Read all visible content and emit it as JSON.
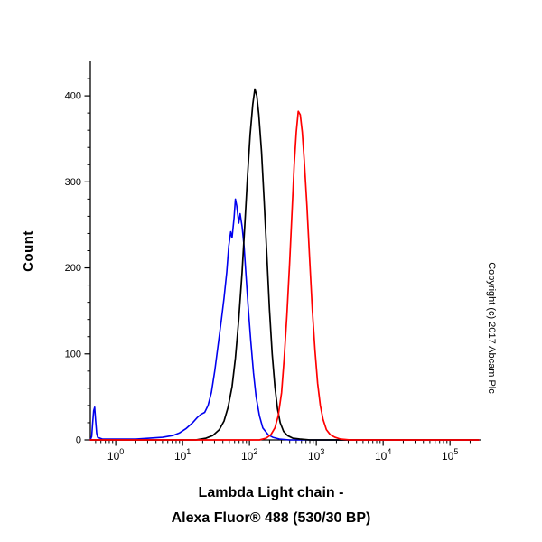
{
  "title": {
    "line1": "Lambda Light chain -",
    "line2": "Alexa Fluor® 488 (530/30 BP)"
  },
  "ylabel": "Count",
  "copyright": "Copyright (c) 2017 Abcam Plc",
  "colors": {
    "axis": "#000000",
    "blue_curve": "#0000ee",
    "black_curve": "#000000",
    "red_curve": "#ff0000",
    "background": "#ffffff"
  },
  "chart_data": {
    "type": "line",
    "subtype": "flow-cytometry-histogram",
    "x_scale": "log10",
    "xlabel": "",
    "ylabel": "Count",
    "xlim_log": [
      -0.38,
      5.43
    ],
    "ylim": [
      0,
      440
    ],
    "x_tick_exponents": [
      0,
      1,
      2,
      3,
      4,
      5
    ],
    "y_ticks": [
      0,
      100,
      200,
      300,
      400
    ],
    "y_minor_step": 20,
    "grid": false,
    "legend": "none",
    "series": [
      {
        "name": "blue-curve",
        "color": "#0000ee",
        "width": 1.6,
        "peak": {
          "x_log10": 1.79,
          "count": 280
        },
        "points": [
          [
            -0.38,
            0
          ],
          [
            -0.36,
            4
          ],
          [
            -0.345,
            20
          ],
          [
            -0.33,
            34
          ],
          [
            -0.315,
            38
          ],
          [
            -0.3,
            22
          ],
          [
            -0.285,
            8
          ],
          [
            -0.27,
            3
          ],
          [
            -0.2,
            1
          ],
          [
            0.0,
            1
          ],
          [
            0.3,
            1
          ],
          [
            0.5,
            2
          ],
          [
            0.7,
            3
          ],
          [
            0.85,
            5
          ],
          [
            0.95,
            8
          ],
          [
            1.05,
            13
          ],
          [
            1.15,
            20
          ],
          [
            1.22,
            26
          ],
          [
            1.28,
            30
          ],
          [
            1.33,
            32
          ],
          [
            1.38,
            40
          ],
          [
            1.43,
            55
          ],
          [
            1.48,
            80
          ],
          [
            1.53,
            110
          ],
          [
            1.58,
            140
          ],
          [
            1.62,
            165
          ],
          [
            1.66,
            195
          ],
          [
            1.69,
            225
          ],
          [
            1.72,
            242
          ],
          [
            1.74,
            235
          ],
          [
            1.77,
            258
          ],
          [
            1.79,
            280
          ],
          [
            1.81,
            272
          ],
          [
            1.84,
            252
          ],
          [
            1.86,
            263
          ],
          [
            1.89,
            248
          ],
          [
            1.92,
            225
          ],
          [
            1.95,
            190
          ],
          [
            1.98,
            155
          ],
          [
            2.02,
            115
          ],
          [
            2.06,
            78
          ],
          [
            2.1,
            50
          ],
          [
            2.15,
            28
          ],
          [
            2.2,
            14
          ],
          [
            2.28,
            6
          ],
          [
            2.35,
            3
          ],
          [
            2.45,
            1
          ],
          [
            2.6,
            0
          ],
          [
            5.43,
            0
          ]
        ]
      },
      {
        "name": "black-curve",
        "color": "#000000",
        "width": 1.7,
        "peak": {
          "x_log10": 2.08,
          "count": 408
        },
        "points": [
          [
            -0.38,
            0
          ],
          [
            1.2,
            0
          ],
          [
            1.35,
            2
          ],
          [
            1.45,
            5
          ],
          [
            1.55,
            12
          ],
          [
            1.62,
            22
          ],
          [
            1.68,
            38
          ],
          [
            1.74,
            62
          ],
          [
            1.79,
            95
          ],
          [
            1.84,
            140
          ],
          [
            1.89,
            195
          ],
          [
            1.93,
            250
          ],
          [
            1.97,
            305
          ],
          [
            2.01,
            355
          ],
          [
            2.05,
            390
          ],
          [
            2.08,
            408
          ],
          [
            2.11,
            400
          ],
          [
            2.14,
            378
          ],
          [
            2.18,
            335
          ],
          [
            2.22,
            278
          ],
          [
            2.26,
            215
          ],
          [
            2.3,
            152
          ],
          [
            2.34,
            100
          ],
          [
            2.38,
            62
          ],
          [
            2.42,
            36
          ],
          [
            2.46,
            20
          ],
          [
            2.51,
            10
          ],
          [
            2.57,
            5
          ],
          [
            2.65,
            2
          ],
          [
            2.75,
            1
          ],
          [
            2.9,
            0
          ],
          [
            5.43,
            0
          ]
        ]
      },
      {
        "name": "red-curve",
        "color": "#ff0000",
        "width": 1.7,
        "peak": {
          "x_log10": 2.72,
          "count": 383
        },
        "points": [
          [
            -0.38,
            0
          ],
          [
            2.15,
            0
          ],
          [
            2.25,
            2
          ],
          [
            2.32,
            6
          ],
          [
            2.38,
            14
          ],
          [
            2.43,
            28
          ],
          [
            2.48,
            55
          ],
          [
            2.52,
            95
          ],
          [
            2.56,
            145
          ],
          [
            2.6,
            205
          ],
          [
            2.64,
            270
          ],
          [
            2.67,
            320
          ],
          [
            2.7,
            358
          ],
          [
            2.73,
            382
          ],
          [
            2.76,
            378
          ],
          [
            2.79,
            358
          ],
          [
            2.82,
            325
          ],
          [
            2.86,
            272
          ],
          [
            2.9,
            210
          ],
          [
            2.94,
            152
          ],
          [
            2.98,
            104
          ],
          [
            3.02,
            66
          ],
          [
            3.06,
            40
          ],
          [
            3.1,
            24
          ],
          [
            3.15,
            12
          ],
          [
            3.21,
            6
          ],
          [
            3.28,
            3
          ],
          [
            3.36,
            1
          ],
          [
            3.5,
            0
          ],
          [
            5.43,
            0
          ]
        ]
      }
    ]
  }
}
